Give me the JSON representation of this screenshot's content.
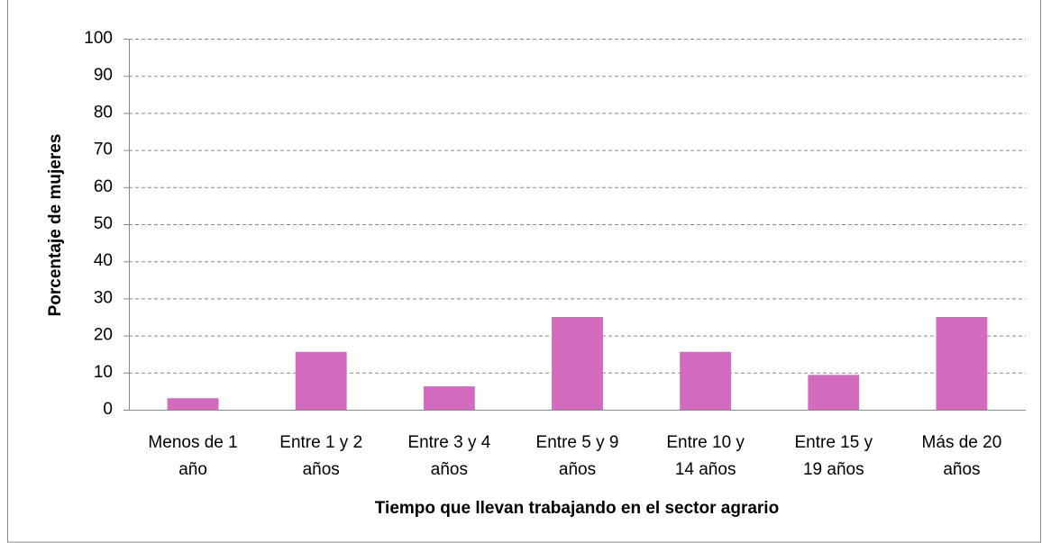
{
  "chart_data": {
    "type": "bar",
    "categories": [
      [
        "Menos de 1",
        "año"
      ],
      [
        "Entre 1 y 2",
        "años"
      ],
      [
        "Entre 3 y 4",
        "años"
      ],
      [
        "Entre 5 y 9",
        "años"
      ],
      [
        "Entre 10 y",
        "14 años"
      ],
      [
        "Entre 15 y",
        "19 años"
      ],
      [
        "Más de 20",
        "años"
      ]
    ],
    "values": [
      3.1,
      15.6,
      6.3,
      25,
      15.6,
      9.4,
      25
    ],
    "color": "#d36bbf",
    "ylim": [
      0,
      100
    ],
    "yticks": [
      0,
      10,
      20,
      30,
      40,
      50,
      60,
      70,
      80,
      90,
      100
    ],
    "grid": true,
    "y_label": "Porcentaje de mujeres",
    "x_label": "Tiempo que llevan trabajando en el sector agrario"
  }
}
